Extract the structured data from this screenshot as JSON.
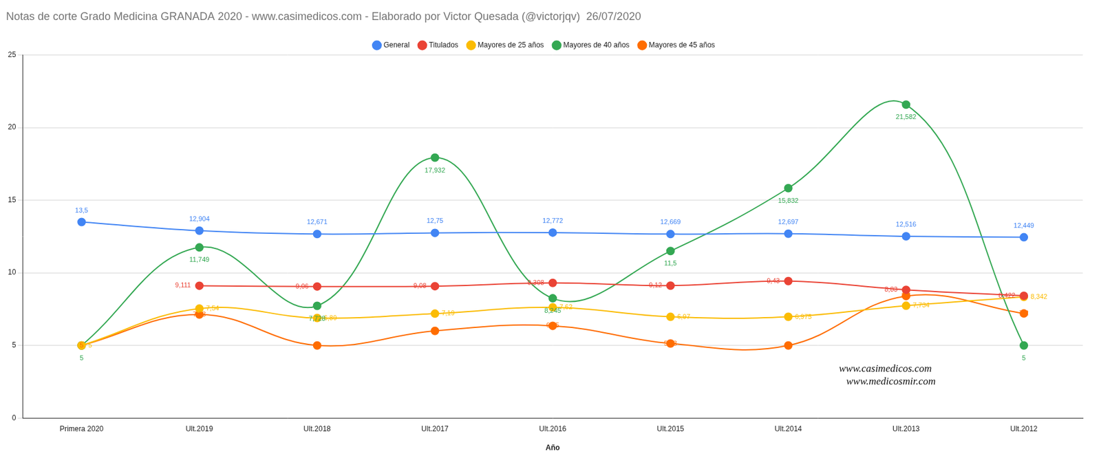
{
  "chart_data": {
    "type": "line",
    "title": "Notas de corte Grado Medicina GRANADA 2020 - www.casimedicos.com - Elaborado por Victor Quesada (@victorjqv)  26/07/2020",
    "x_label": "Año",
    "categories": [
      "Primera 2020",
      "Ult.2019",
      "Ult.2018",
      "Ult.2017",
      "Ult.2016",
      "Ult.2015",
      "Ult.2014",
      "Ult.2013",
      "Ult.2012"
    ],
    "series": [
      {
        "name": "General",
        "color": "#4285f4",
        "marker": "circle",
        "values": [
          13.5,
          12.904,
          12.671,
          12.75,
          12.772,
          12.669,
          12.697,
          12.516,
          12.449
        ],
        "value_labels": [
          "13,5",
          "12,904",
          "12,671",
          "12,75",
          "12,772",
          "12,669",
          "12,697",
          "12,516",
          "12,449"
        ]
      },
      {
        "name": "Titulados",
        "color": "#ea4335",
        "marker": "circle",
        "values": [
          null,
          9.111,
          9.06,
          9.08,
          9.308,
          9.12,
          9.43,
          8.83,
          8.422
        ],
        "value_labels": [
          null,
          "9,111",
          "9,06",
          "9,08",
          "9,308",
          "9,12",
          "9,43",
          "8,83",
          "8,422"
        ]
      },
      {
        "name": "Mayores de 25 años",
        "color": "#fbbc04",
        "marker": "circle",
        "values": [
          5,
          7.54,
          6.89,
          7.19,
          7.62,
          6.97,
          6.975,
          7.734,
          8.342
        ],
        "value_labels": [
          "5",
          "7,54",
          "6,89",
          "7,19",
          "7,62",
          "6,97",
          "6,975",
          "7,734",
          "8,342"
        ]
      },
      {
        "name": "Mayores de 40 años",
        "color": "#34a853",
        "marker": "circle",
        "values": [
          5,
          11.749,
          7.728,
          17.932,
          8.245,
          11.5,
          15.832,
          21.582,
          5
        ],
        "value_labels": [
          "5",
          "11,749",
          "7,728",
          "17,932",
          "8,245",
          "11,5",
          "15,832",
          "21,582",
          "5"
        ]
      },
      {
        "name": "Mayores de 45 años",
        "color": "#ff6d01",
        "marker": "circle",
        "values": [
          5,
          7.13,
          5,
          6,
          6.35,
          5.13,
          5,
          8.4,
          7.2
        ],
        "value_labels": [
          "5",
          "7,13",
          "5",
          "6",
          "6,35",
          "5,13",
          "5",
          "8,4",
          "7,2"
        ]
      }
    ],
    "ylim": [
      0,
      25
    ],
    "yticks": [
      0,
      5,
      10,
      15,
      20,
      25
    ],
    "grid": true,
    "legend": "top",
    "data_labels": true,
    "annotations": [
      "www.casimedicos.com",
      "www.medicosmir.com"
    ]
  }
}
